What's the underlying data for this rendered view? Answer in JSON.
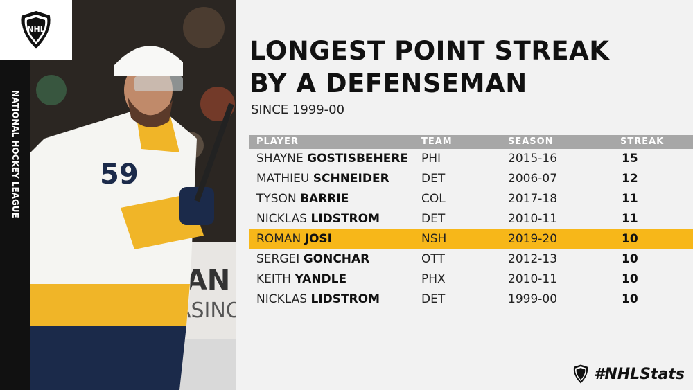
{
  "brand": {
    "league_vertical": "NATIONAL HOCKEY LEAGUE",
    "logo_icon": "nhl-shield-icon",
    "hashtag": "#NHLStats"
  },
  "header": {
    "title_line1": "LONGEST POINT STREAK",
    "title_line2": "BY A DEFENSEMAN",
    "subtitle": "SINCE 1999-00"
  },
  "table": {
    "columns": [
      "PLAYER",
      "TEAM",
      "SEASON",
      "STREAK"
    ],
    "rows": [
      {
        "first": "SHAYNE",
        "last": "GOSTISBEHERE",
        "team": "PHI",
        "season": "2015-16",
        "streak": "15",
        "highlight": false
      },
      {
        "first": "MATHIEU",
        "last": "SCHNEIDER",
        "team": "DET",
        "season": "2006-07",
        "streak": "12",
        "highlight": false
      },
      {
        "first": "TYSON",
        "last": "BARRIE",
        "team": "COL",
        "season": "2017-18",
        "streak": "11",
        "highlight": false
      },
      {
        "first": "NICKLAS",
        "last": "LIDSTROM",
        "team": "DET",
        "season": "2010-11",
        "streak": "11",
        "highlight": false
      },
      {
        "first": "ROMAN",
        "last": "JOSI",
        "team": "NSH",
        "season": "2019-20",
        "streak": "10",
        "highlight": true
      },
      {
        "first": "SERGEI",
        "last": "GONCHAR",
        "team": "OTT",
        "season": "2012-13",
        "streak": "10",
        "highlight": false
      },
      {
        "first": "KEITH",
        "last": "YANDLE",
        "team": "PHX",
        "season": "2010-11",
        "streak": "10",
        "highlight": false
      },
      {
        "first": "NICKLAS",
        "last": "LIDSTROM",
        "team": "DET",
        "season": "1999-00",
        "streak": "10",
        "highlight": false
      }
    ]
  },
  "photo": {
    "jersey_number": "59",
    "arena_sign_line1": "SAN",
    "arena_sign_line2": "CASINO"
  },
  "colors": {
    "highlight": "#f7b719",
    "header_bar": "#a7a7a7",
    "jersey_gold": "#f0b528",
    "jersey_navy": "#1b2a4a"
  }
}
